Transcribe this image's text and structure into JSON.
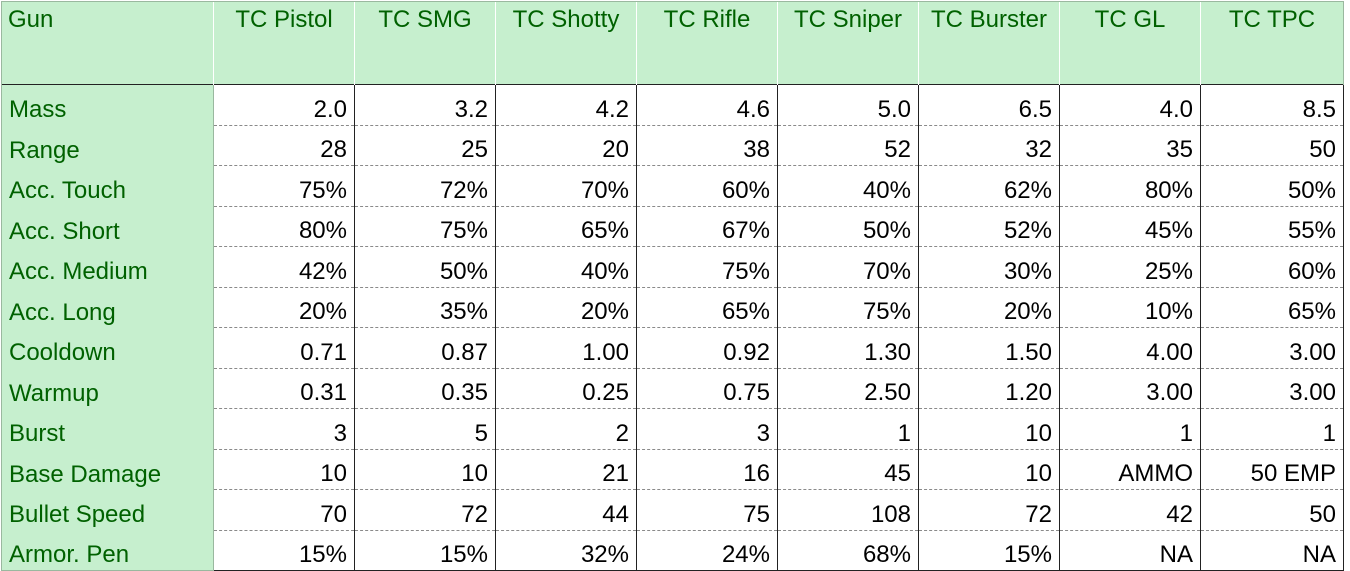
{
  "header": {
    "corner": "Gun",
    "guns": [
      "TC Pistol",
      "TC SMG",
      "TC Shotty",
      "TC Rifle",
      "TC Sniper",
      "TC Burster",
      "TC GL",
      "TC TPC"
    ]
  },
  "rows": [
    {
      "label": "Mass",
      "values": [
        "2.0",
        "3.2",
        "4.2",
        "4.6",
        "5.0",
        "6.5",
        "4.0",
        "8.5"
      ]
    },
    {
      "label": "Range",
      "values": [
        "28",
        "25",
        "20",
        "38",
        "52",
        "32",
        "35",
        "50"
      ]
    },
    {
      "label": "Acc. Touch",
      "values": [
        "75%",
        "72%",
        "70%",
        "60%",
        "40%",
        "62%",
        "80%",
        "50%"
      ]
    },
    {
      "label": "Acc. Short",
      "values": [
        "80%",
        "75%",
        "65%",
        "67%",
        "50%",
        "52%",
        "45%",
        "55%"
      ]
    },
    {
      "label": "Acc. Medium",
      "values": [
        "42%",
        "50%",
        "40%",
        "75%",
        "70%",
        "30%",
        "25%",
        "60%"
      ]
    },
    {
      "label": "Acc. Long",
      "values": [
        "20%",
        "35%",
        "20%",
        "65%",
        "75%",
        "20%",
        "10%",
        "65%"
      ]
    },
    {
      "label": "Cooldown",
      "values": [
        "0.71",
        "0.87",
        "1.00",
        "0.92",
        "1.30",
        "1.50",
        "4.00",
        "3.00"
      ]
    },
    {
      "label": "Warmup",
      "values": [
        "0.31",
        "0.35",
        "0.25",
        "0.75",
        "2.50",
        "1.20",
        "3.00",
        "3.00"
      ]
    },
    {
      "label": "Burst",
      "values": [
        "3",
        "5",
        "2",
        "3",
        "1",
        "10",
        "1",
        "1"
      ]
    },
    {
      "label": "Base Damage",
      "values": [
        "10",
        "10",
        "21",
        "16",
        "45",
        "10",
        "AMMO",
        "50 EMP"
      ]
    },
    {
      "label": "Bullet Speed",
      "values": [
        "70",
        "72",
        "44",
        "75",
        "108",
        "72",
        "42",
        "50"
      ]
    },
    {
      "label": "Armor. Pen",
      "values": [
        "15%",
        "15%",
        "32%",
        "24%",
        "68%",
        "15%",
        "NA",
        "NA"
      ]
    }
  ],
  "colors": {
    "header_fill": "#c6efce",
    "header_text": "#006100",
    "cell_text": "#000000"
  }
}
